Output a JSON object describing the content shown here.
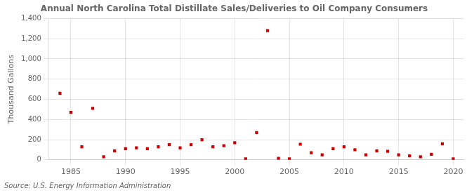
{
  "chart_data": {
    "type": "scatter",
    "title": "Annual North Carolina Total Distillate Sales/Deliveries to Oil Company Consumers",
    "ylabel": "Thousand Gallons",
    "source": "Source: U.S. Energy Information Administration",
    "x": [
      1984,
      1985,
      1986,
      1987,
      1988,
      1989,
      1990,
      1991,
      1992,
      1993,
      1994,
      1995,
      1996,
      1997,
      1998,
      1999,
      2000,
      2001,
      2002,
      2003,
      2004,
      2005,
      2006,
      2007,
      2008,
      2009,
      2010,
      2011,
      2012,
      2013,
      2014,
      2015,
      2016,
      2017,
      2018,
      2019,
      2020
    ],
    "values": [
      660,
      470,
      130,
      510,
      30,
      90,
      110,
      120,
      110,
      130,
      150,
      120,
      150,
      200,
      130,
      140,
      170,
      10,
      270,
      1280,
      15,
      10,
      155,
      70,
      50,
      110,
      130,
      100,
      50,
      90,
      85,
      50,
      40,
      30,
      55,
      160,
      10
    ],
    "color": "#cc0000",
    "marker": "square",
    "xlim": [
      1983,
      2021
    ],
    "xticks": [
      1985,
      1990,
      1995,
      2000,
      2005,
      2010,
      2015,
      2020
    ],
    "ylim": [
      0,
      1400
    ],
    "yticks": [
      0,
      200,
      400,
      600,
      800,
      {
        "value": 1000,
        "label": "1,000"
      },
      {
        "value": 1200,
        "label": "1,200"
      },
      {
        "value": 1400,
        "label": "1,400"
      }
    ],
    "grid": true
  }
}
